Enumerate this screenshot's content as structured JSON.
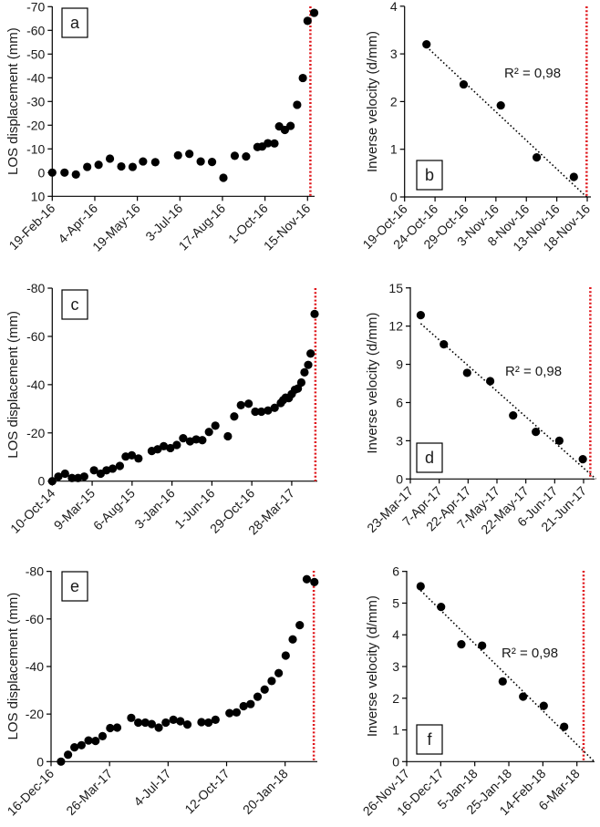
{
  "chart_data": [
    {
      "panel": "a",
      "type": "scatter",
      "ylabel": "LOS displacement (mm)",
      "yticks": [
        -70,
        -60,
        -50,
        -40,
        -30,
        -20,
        -10,
        0,
        10
      ],
      "ylim": [
        10,
        -70
      ],
      "x_unit": "days since 19-Feb-16",
      "xtick_step_days": 45,
      "xticks": [
        "19-Feb-16",
        "4-Apr-16",
        "19-May-16",
        "3-Jul-16",
        "17-Aug-16",
        "1-Oct-16",
        "15-Nov-16"
      ],
      "points": [
        [
          0,
          0
        ],
        [
          13,
          0
        ],
        [
          25,
          0.8
        ],
        [
          37,
          -2.4
        ],
        [
          49,
          -3.3
        ],
        [
          61,
          -5.9
        ],
        [
          73,
          -2.6
        ],
        [
          85,
          -2.4
        ],
        [
          96,
          -4.7
        ],
        [
          109,
          -4.4
        ],
        [
          133,
          -7.3
        ],
        [
          145,
          -7.9
        ],
        [
          157,
          -4.7
        ],
        [
          169,
          -4.5
        ],
        [
          181,
          2.2
        ],
        [
          193,
          -7.1
        ],
        [
          205,
          -6.8
        ],
        [
          217,
          -10.8
        ],
        [
          222,
          -11
        ],
        [
          228,
          -12.4
        ],
        [
          235,
          -12.3
        ],
        [
          240,
          -19.5
        ],
        [
          246,
          -18
        ],
        [
          252,
          -19.7
        ],
        [
          259,
          -28.6
        ],
        [
          265,
          -39.9
        ],
        [
          270,
          -64
        ],
        [
          277,
          -67.4
        ]
      ],
      "failure_line_x": 273
    },
    {
      "panel": "b",
      "type": "scatter",
      "ylabel": "Inverse velocity (d/mm)",
      "yticks": [
        0,
        1,
        2,
        3,
        4
      ],
      "ylim": [
        0,
        4
      ],
      "x_unit": "days since 19-Oct-16",
      "xtick_step_days": 5,
      "xticks": [
        "19-Oct-16",
        "24-Oct-16",
        "29-Oct-16",
        "3-Nov-16",
        "8-Nov-16",
        "13-Nov-16",
        "18-Nov-16"
      ],
      "points": [
        [
          3.6,
          3.2
        ],
        [
          9.7,
          2.36
        ],
        [
          15.8,
          1.92
        ],
        [
          21.7,
          0.83
        ],
        [
          27.8,
          0.42
        ]
      ],
      "trend": [
        [
          3.6,
          3.15
        ],
        [
          29.9,
          0
        ]
      ],
      "r2": "R² = 0,98",
      "failure_line_x": 29.9
    },
    {
      "panel": "c",
      "type": "scatter",
      "ylabel": "LOS displacement (mm)",
      "yticks": [
        -80,
        -60,
        -40,
        -20,
        0
      ],
      "ylim": [
        0,
        -80
      ],
      "x_unit": "days since 10-Oct-14",
      "xtick_step_days": 150,
      "xticks": [
        "10-Oct-14",
        "9-Mar-15",
        "6-Aug-15",
        "3-Jan-16",
        "1-Jun-16",
        "29-Oct-16",
        "28-Mar-17"
      ],
      "points": [
        [
          0,
          0
        ],
        [
          23,
          -1.9
        ],
        [
          48,
          -3.1
        ],
        [
          74,
          -1.3
        ],
        [
          97,
          -1.3
        ],
        [
          120,
          -1.9
        ],
        [
          157,
          -4.5
        ],
        [
          182,
          -3.1
        ],
        [
          204,
          -4.5
        ],
        [
          227,
          -5.2
        ],
        [
          254,
          -6.3
        ],
        [
          276,
          -10.2
        ],
        [
          299,
          -10.7
        ],
        [
          324,
          -9.4
        ],
        [
          374,
          -12.5
        ],
        [
          396,
          -13.2
        ],
        [
          419,
          -14.5
        ],
        [
          444,
          -13.7
        ],
        [
          468,
          -15
        ],
        [
          492,
          -17.8
        ],
        [
          518,
          -16.5
        ],
        [
          541,
          -17.3
        ],
        [
          564,
          -17
        ],
        [
          589,
          -20.4
        ],
        [
          613,
          -23
        ],
        [
          660,
          -18.6
        ],
        [
          684,
          -26.8
        ],
        [
          709,
          -31.5
        ],
        [
          738,
          -32.1
        ],
        [
          763,
          -28.8
        ],
        [
          786,
          -28.8
        ],
        [
          811,
          -29.3
        ],
        [
          836,
          -30.4
        ],
        [
          859,
          -32.4
        ],
        [
          868,
          -33.6
        ],
        [
          877,
          -34.6
        ],
        [
          889,
          -34.4
        ],
        [
          900,
          -36.1
        ],
        [
          912,
          -37.9
        ],
        [
          923,
          -38.4
        ],
        [
          936,
          -40.9
        ],
        [
          948,
          -45.1
        ],
        [
          962,
          -48.2
        ],
        [
          971,
          -52.9
        ],
        [
          986,
          -69.3
        ]
      ],
      "failure_line_x": 989
    },
    {
      "panel": "d",
      "type": "scatter",
      "ylabel": "Inverse velocity (d/mm)",
      "yticks": [
        0,
        3,
        6,
        9,
        12,
        15
      ],
      "ylim": [
        0,
        15
      ],
      "x_unit": "days since 23-Mar-17",
      "xtick_step_days": 15,
      "xticks": [
        "23-Mar-17",
        "7-Apr-17",
        "22-Apr-17",
        "7-May-17",
        "22-May-17",
        "6-Jun-17",
        "21-Jun-17"
      ],
      "points": [
        [
          5.4,
          12.86
        ],
        [
          17.4,
          10.57
        ],
        [
          29.5,
          8.33
        ],
        [
          41.5,
          7.68
        ],
        [
          53.4,
          4.99
        ],
        [
          65.2,
          3.7
        ],
        [
          77.4,
          3.0
        ],
        [
          89.6,
          1.55
        ]
      ],
      "trend": [
        [
          5.4,
          12.2
        ],
        [
          96.4,
          0
        ]
      ],
      "r2": "R² = 0,98",
      "failure_line_x": 93.5
    },
    {
      "panel": "e",
      "type": "scatter",
      "ylabel": "LOS displacement (mm)",
      "yticks": [
        -80,
        -60,
        -40,
        -20,
        0
      ],
      "ylim": [
        0,
        -80
      ],
      "x_unit": "days since 16-Dec-16",
      "xtick_step_days": 100,
      "xticks": [
        "16-Dec-16",
        "26-Mar-17",
        "4-Jul-17",
        "12-Oct-17",
        "20-Jan-18"
      ],
      "points": [
        [
          17,
          0
        ],
        [
          29,
          -2.9
        ],
        [
          40,
          -6
        ],
        [
          52,
          -6.9
        ],
        [
          64,
          -8.9
        ],
        [
          76,
          -8.7
        ],
        [
          88,
          -10.7
        ],
        [
          101,
          -14.1
        ],
        [
          113,
          -14.3
        ],
        [
          137,
          -18.4
        ],
        [
          149,
          -16.4
        ],
        [
          161,
          -16.4
        ],
        [
          172,
          -15.8
        ],
        [
          184,
          -14.3
        ],
        [
          196,
          -16.4
        ],
        [
          209,
          -17.6
        ],
        [
          221,
          -17
        ],
        [
          233,
          -15.6
        ],
        [
          257,
          -16.6
        ],
        [
          269,
          -16.4
        ],
        [
          281,
          -17.6
        ],
        [
          305,
          -20.4
        ],
        [
          317,
          -20.7
        ],
        [
          329,
          -23.3
        ],
        [
          341,
          -24.2
        ],
        [
          353,
          -27.3
        ],
        [
          365,
          -30.3
        ],
        [
          377,
          -33.9
        ],
        [
          389,
          -37.2
        ],
        [
          401,
          -44.6
        ],
        [
          413,
          -51.4
        ],
        [
          425,
          -57.4
        ],
        [
          437,
          -76.7
        ],
        [
          450,
          -75.5
        ]
      ],
      "failure_line_x": 449
    },
    {
      "panel": "f",
      "type": "scatter",
      "ylabel": "Inverse velocity (d/mm)",
      "yticks": [
        0,
        1,
        2,
        3,
        4,
        5,
        6
      ],
      "ylim": [
        0,
        6
      ],
      "x_unit": "days since 26-Nov-17",
      "xtick_step_days": 20,
      "xticks": [
        "26-Nov-17",
        "16-Dec-17",
        "5-Jan-18",
        "25-Jan-18",
        "14-Feb-18",
        "6-Mar-18"
      ],
      "points": [
        [
          8.2,
          5.53
        ],
        [
          20.2,
          4.88
        ],
        [
          32.1,
          3.7
        ],
        [
          44.3,
          3.66
        ],
        [
          56.4,
          2.53
        ],
        [
          68.4,
          2.05
        ],
        [
          80.5,
          1.76
        ],
        [
          92.5,
          1.1
        ]
      ],
      "trend": [
        [
          8.2,
          5.4
        ],
        [
          110.2,
          0
        ]
      ],
      "r2": "R² = 0,98",
      "failure_line_x": 103.9
    }
  ]
}
